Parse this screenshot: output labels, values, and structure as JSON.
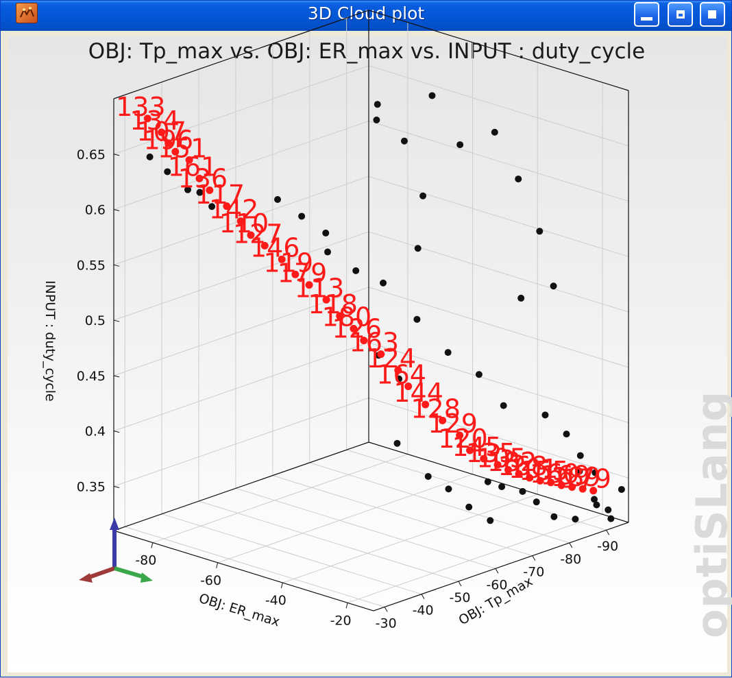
{
  "window": {
    "title": "3D Cloud plot",
    "title_bar_color": "#0457d6",
    "icons": [
      "app-icon",
      "minimize-icon",
      "maximize-icon",
      "restore-icon"
    ]
  },
  "watermark": "optiSLang",
  "chart_data": {
    "type": "scatter3d",
    "title": "OBJ: Tp_max vs. OBJ: ER_max vs. INPUT : duty_cycle",
    "xlabel": "OBJ: ER_max",
    "ylabel": "OBJ: Tp_max",
    "zlabel": "INPUT : duty_cycle",
    "x_ticks": [
      "-80",
      "-60",
      "-40",
      "-20"
    ],
    "y_ticks": [
      "-30",
      "-40",
      "-50",
      "-60",
      "-70",
      "-80",
      "-90"
    ],
    "z_ticks": [
      "0.35",
      "0.4",
      "0.45",
      "0.5",
      "0.55",
      "0.6",
      "0.65"
    ],
    "xlim": [
      -92,
      -12
    ],
    "ylim": [
      -27,
      -96
    ],
    "zlim": [
      0.31,
      0.7
    ],
    "grid": true,
    "colors": {
      "highlighted": "#ff1a1a",
      "normal": "#111111"
    },
    "series": [
      {
        "name": "",
        "color": "#ff1a1a",
        "points": [
          {
            "er": -85,
            "tp": -30,
            "dc": 0.685,
            "label": "133"
          },
          {
            "er": -83,
            "tp": -32,
            "dc": 0.672,
            "label": "134"
          },
          {
            "er": -82,
            "tp": -33,
            "dc": 0.662,
            "label": "107"
          },
          {
            "er": -81,
            "tp": -34,
            "dc": 0.654,
            "label": "196"
          },
          {
            "er": -79,
            "tp": -36,
            "dc": 0.646,
            "label": "151"
          },
          {
            "er": -77,
            "tp": -37,
            "dc": 0.63,
            "label": "161"
          },
          {
            "er": -75,
            "tp": -38,
            "dc": 0.62,
            "label": "136"
          },
          {
            "er": -72,
            "tp": -40,
            "dc": 0.606,
            "label": "117"
          },
          {
            "er": -70,
            "tp": -42,
            "dc": 0.592,
            "label": "142"
          },
          {
            "er": -68,
            "tp": -43,
            "dc": 0.58,
            "label": "110"
          },
          {
            "er": -66,
            "tp": -45,
            "dc": 0.57,
            "label": "127"
          },
          {
            "er": -63,
            "tp": -47,
            "dc": 0.558,
            "label": "146"
          },
          {
            "er": -60,
            "tp": -48,
            "dc": 0.546,
            "label": "119"
          },
          {
            "er": -58,
            "tp": -50,
            "dc": 0.536,
            "label": "179"
          },
          {
            "er": -55,
            "tp": -52,
            "dc": 0.523,
            "label": "113"
          },
          {
            "er": -52,
            "tp": -53,
            "dc": 0.51,
            "label": "118"
          },
          {
            "er": -50,
            "tp": -55,
            "dc": 0.498,
            "label": "180"
          },
          {
            "er": -48,
            "tp": -56,
            "dc": 0.488,
            "label": "126"
          },
          {
            "er": -45,
            "tp": -58,
            "dc": 0.476,
            "label": "163"
          },
          {
            "er": -42,
            "tp": -60,
            "dc": 0.462,
            "label": "124"
          },
          {
            "er": -40,
            "tp": -61,
            "dc": 0.448,
            "label": "164"
          },
          {
            "er": -37,
            "tp": -63,
            "dc": 0.432,
            "label": "144"
          },
          {
            "er": -34,
            "tp": -65,
            "dc": 0.418,
            "label": "128"
          },
          {
            "er": -31,
            "tp": -67,
            "dc": 0.405,
            "label": "129"
          },
          {
            "er": -29,
            "tp": -68,
            "dc": 0.392,
            "label": "120"
          },
          {
            "er": -27,
            "tp": -70,
            "dc": 0.384,
            "label": "145"
          },
          {
            "er": -25,
            "tp": -72,
            "dc": 0.378,
            "label": "135"
          },
          {
            "er": -24,
            "tp": -74,
            "dc": 0.372,
            "label": "105"
          },
          {
            "er": -23,
            "tp": -76,
            "dc": 0.367,
            "label": "182"
          },
          {
            "er": -22,
            "tp": -78,
            "dc": 0.362,
            "label": "168"
          },
          {
            "er": -21,
            "tp": -80,
            "dc": 0.358,
            "label": "101"
          },
          {
            "er": -20,
            "tp": -82,
            "dc": 0.355,
            "label": "155"
          },
          {
            "er": -19,
            "tp": -84,
            "dc": 0.351,
            "label": "160"
          },
          {
            "er": -18,
            "tp": -86,
            "dc": 0.348,
            "label": "169"
          },
          {
            "er": -17,
            "tp": -88,
            "dc": 0.345,
            "label": "189"
          },
          {
            "er": -16,
            "tp": -90,
            "dc": 0.342,
            "label": "179"
          }
        ]
      },
      {
        "name": "",
        "color": "#111111",
        "points": [
          {
            "er": -90,
            "tp": -35,
            "dc": 0.64
          },
          {
            "er": -88,
            "tp": -38,
            "dc": 0.625
          },
          {
            "er": -84,
            "tp": -40,
            "dc": 0.61
          },
          {
            "er": -80,
            "tp": -43,
            "dc": 0.595
          },
          {
            "er": -86,
            "tp": -45,
            "dc": 0.6
          },
          {
            "er": -70,
            "tp": -52,
            "dc": 0.6
          },
          {
            "er": -66,
            "tp": -55,
            "dc": 0.585
          },
          {
            "er": -62,
            "tp": -58,
            "dc": 0.57
          },
          {
            "er": -58,
            "tp": -55,
            "dc": 0.56
          },
          {
            "er": -55,
            "tp": -60,
            "dc": 0.54
          },
          {
            "er": -50,
            "tp": -63,
            "dc": 0.53
          },
          {
            "er": -45,
            "tp": -68,
            "dc": 0.56
          },
          {
            "er": -40,
            "tp": -75,
            "dc": 0.65
          },
          {
            "er": -35,
            "tp": -80,
            "dc": 0.66
          },
          {
            "er": -30,
            "tp": -82,
            "dc": 0.62
          },
          {
            "er": -28,
            "tp": -86,
            "dc": 0.57
          },
          {
            "er": -26,
            "tp": -88,
            "dc": 0.52
          },
          {
            "er": -38,
            "tp": -70,
            "dc": 0.47
          },
          {
            "er": -33,
            "tp": -74,
            "dc": 0.45
          },
          {
            "er": -30,
            "tp": -78,
            "dc": 0.42
          },
          {
            "er": -24,
            "tp": -84,
            "dc": 0.41
          },
          {
            "er": -22,
            "tp": -88,
            "dc": 0.39
          },
          {
            "er": -20,
            "tp": -90,
            "dc": 0.37
          },
          {
            "er": -18,
            "tp": -92,
            "dc": 0.33
          },
          {
            "er": -16,
            "tp": -94,
            "dc": 0.32
          },
          {
            "er": -14,
            "tp": -93,
            "dc": 0.315
          },
          {
            "er": -15,
            "tp": -90,
            "dc": 0.33
          },
          {
            "er": -17,
            "tp": -86,
            "dc": 0.32
          },
          {
            "er": -19,
            "tp": -82,
            "dc": 0.325
          },
          {
            "er": -21,
            "tp": -79,
            "dc": 0.34
          },
          {
            "er": -23,
            "tp": -77,
            "dc": 0.35
          },
          {
            "er": -26,
            "tp": -74,
            "dc": 0.355
          },
          {
            "er": -28,
            "tp": -72,
            "dc": 0.36
          },
          {
            "er": -25,
            "tp": -70,
            "dc": 0.33
          },
          {
            "er": -27,
            "tp": -66,
            "dc": 0.345
          },
          {
            "er": -31,
            "tp": -64,
            "dc": 0.36
          },
          {
            "er": -35,
            "tp": -62,
            "dc": 0.37
          },
          {
            "er": -40,
            "tp": -58,
            "dc": 0.4
          },
          {
            "er": -44,
            "tp": -62,
            "dc": 0.45
          },
          {
            "er": -48,
            "tp": -60,
            "dc": 0.47
          },
          {
            "er": -43,
            "tp": -66,
            "dc": 0.5
          },
          {
            "er": -60,
            "tp": -70,
            "dc": 0.66
          },
          {
            "er": -62,
            "tp": -72,
            "dc": 0.67
          },
          {
            "er": -56,
            "tp": -74,
            "dc": 0.64
          },
          {
            "er": -52,
            "tp": -78,
            "dc": 0.68
          },
          {
            "er": -48,
            "tp": -72,
            "dc": 0.6
          },
          {
            "er": -36,
            "tp": -88,
            "dc": 0.5
          },
          {
            "er": -18,
            "tp": -88,
            "dc": 0.36
          },
          {
            "er": -20,
            "tp": -94,
            "dc": 0.35
          },
          {
            "er": -13,
            "tp": -95,
            "dc": 0.34
          }
        ]
      }
    ]
  }
}
